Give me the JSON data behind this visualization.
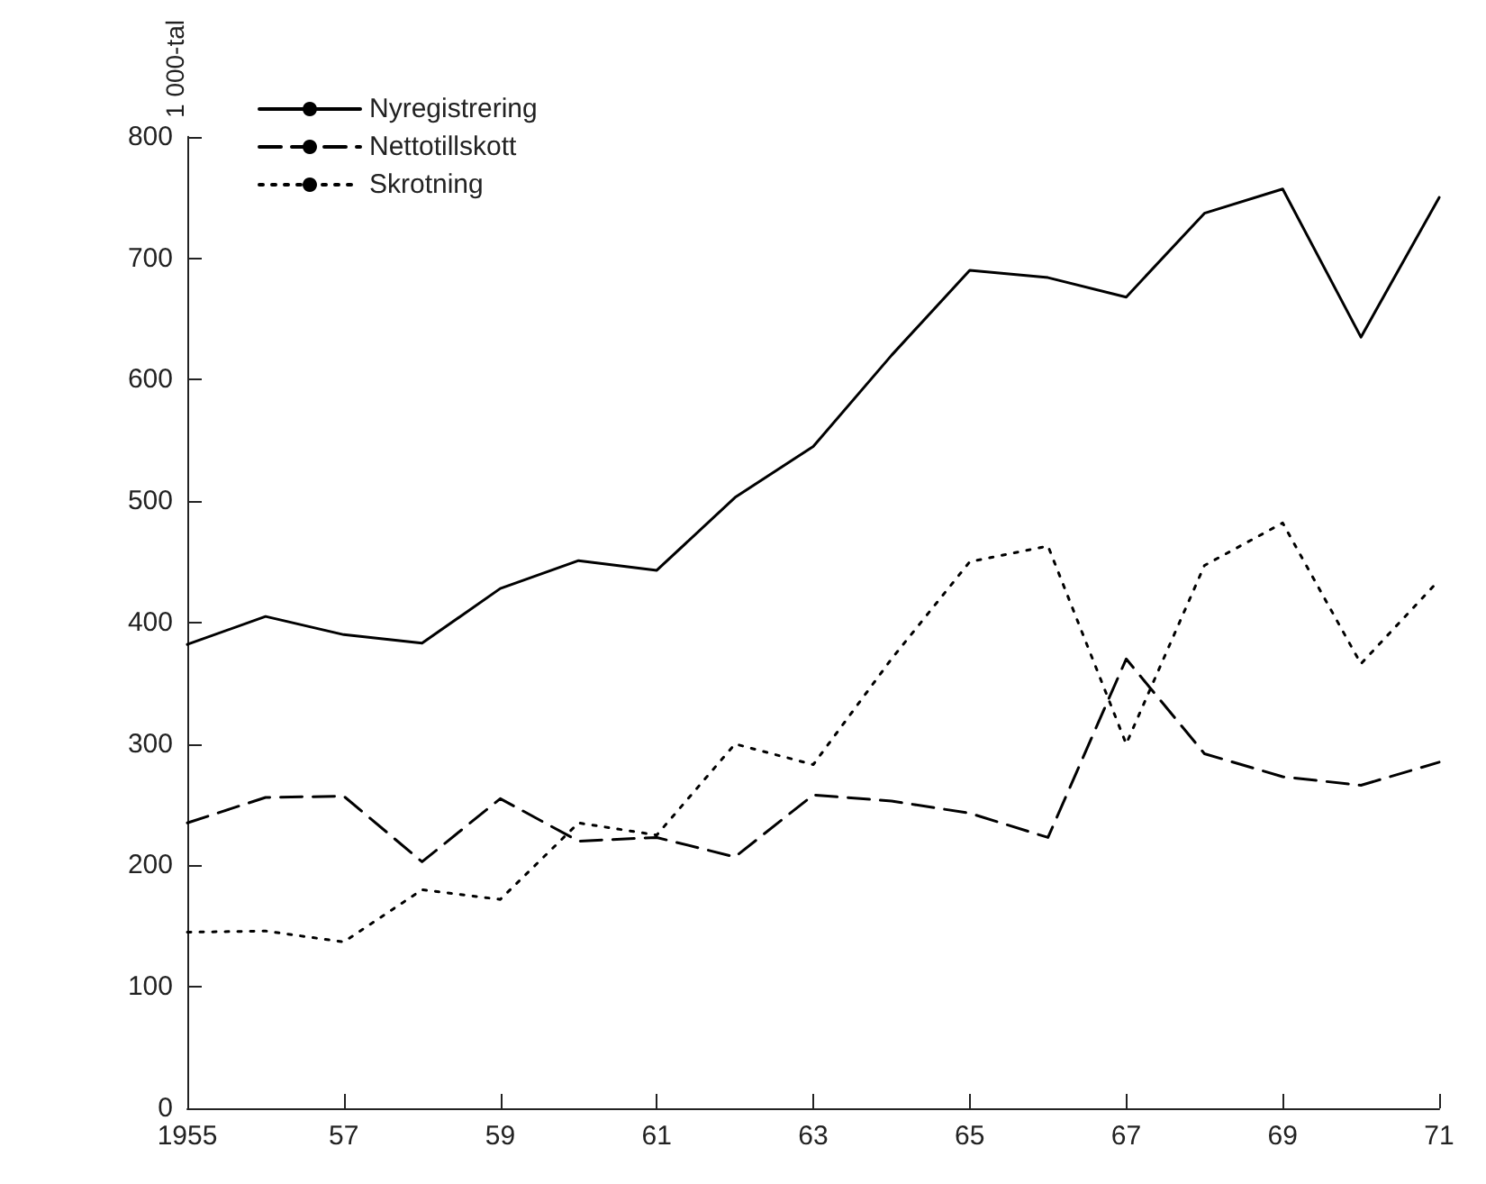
{
  "chart_data": {
    "type": "line",
    "ylabel": "1 000-tal",
    "x": [
      1955,
      1956,
      1957,
      1958,
      1959,
      1960,
      1961,
      1962,
      1963,
      1964,
      1965,
      1966,
      1967,
      1968,
      1969,
      1970,
      1971
    ],
    "series": [
      {
        "name": "Nyregistrering",
        "color": "#000000",
        "line_style": "solid",
        "values": [
          382,
          405,
          390,
          383,
          428,
          451,
          443,
          503,
          545,
          620,
          690,
          684,
          668,
          737,
          757,
          635,
          750
        ]
      },
      {
        "name": "Nettotillskott",
        "color": "#000000",
        "line_style": "dashed",
        "values": [
          235,
          256,
          257,
          203,
          255,
          220,
          223,
          207,
          258,
          253,
          243,
          223,
          370,
          292,
          273,
          266,
          285
        ]
      },
      {
        "name": "Skrotning",
        "color": "#000000",
        "line_style": "dotted",
        "values": [
          145,
          146,
          137,
          180,
          172,
          235,
          225,
          300,
          283,
          370,
          450,
          463,
          300,
          447,
          482,
          366,
          435
        ]
      }
    ],
    "xlim": [
      1955,
      1971
    ],
    "xticks": [
      1955,
      {
        "value": 1957,
        "label": "57"
      },
      {
        "value": 1959,
        "label": "59"
      },
      {
        "value": 1961,
        "label": "61"
      },
      {
        "value": 1963,
        "label": "63"
      },
      {
        "value": 1965,
        "label": "65"
      },
      {
        "value": 1967,
        "label": "67"
      },
      {
        "value": 1969,
        "label": "69"
      },
      {
        "value": 1971,
        "label": "71"
      }
    ],
    "ylim": [
      0,
      800
    ],
    "yticks": [
      0,
      100,
      200,
      300,
      400,
      500,
      600,
      700,
      800
    ],
    "grid": false,
    "legend": "top left",
    "marker": "none"
  }
}
